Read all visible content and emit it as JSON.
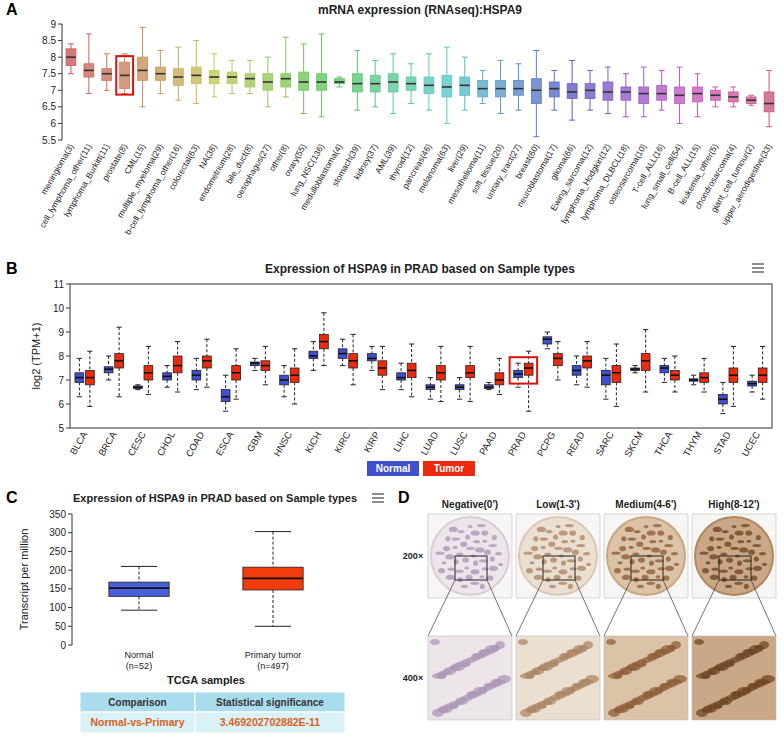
{
  "chart_data": [
    {
      "type": "box",
      "panel": "A",
      "title": "mRNA expression (RNAseq):HSPA9",
      "categories": [
        "meningioma(3)",
        "cell_lymphoma_other(11)",
        "lymphoma_Burkitt(11)",
        "prostate(8)",
        "CML(15)",
        "multiple_myeloma(29)",
        "b-cell_lymphoma_other(16)",
        "colorectal(63)",
        "NA(38)",
        "endometrium(28)",
        "bile_duct(8)",
        "oesophagus(27)",
        "other(8)",
        "ovary(55)",
        "lung_NSC(136)",
        "medulloblastoma(4)",
        "stomach(39)",
        "kidney(37)",
        "AML(39)",
        "thyroid(12)",
        "pancreas(46)",
        "melanoma(63)",
        "liver(29)",
        "mesothelioma(11)",
        "soft_tissue(20)",
        "urinary_tract(27)",
        "breast(60)",
        "neuroblastoma(17)",
        "glioma(66)",
        "Ewing_sarcoma(12)",
        "lymphoma_Hodgkin(12)",
        "lymphoma_DLBCL(18)",
        "osteosarcoma(10)",
        "T-cell_ALL(16)",
        "lung_small_cell(54)",
        "B-cell_ALL(15)",
        "leukemia_other(5)",
        "chondrosarcoma(4)",
        "giant_cell_tumour(2)",
        "upper_aerodigestive(33)"
      ],
      "colors": [
        "#c85a5a",
        "#c86a5a",
        "#c8755a",
        "#c8825a",
        "#c8905a",
        "#c89e5a",
        "#c8ab5a",
        "#c8b85a",
        "#c3c85a",
        "#b3c85a",
        "#a3c85a",
        "#93c85a",
        "#83c85a",
        "#72c85a",
        "#62c85a",
        "#5ac866",
        "#5ac876",
        "#5ac886",
        "#5ac896",
        "#5ac8a6",
        "#5ac8b6",
        "#5ac8c6",
        "#5abac8",
        "#5aaac8",
        "#5a9ac8",
        "#5a8ac8",
        "#5a7ac8",
        "#5a6ac8",
        "#605ac8",
        "#705ac8",
        "#805ac8",
        "#905ac8",
        "#a05ac8",
        "#b05ac8",
        "#c05ac8",
        "#c85abc",
        "#c85aac",
        "#c85a9c",
        "#c85a8c",
        "#c85a7c"
      ],
      "min": [
        7.5,
        6.9,
        7.0,
        6.9,
        6.5,
        6.9,
        6.7,
        6.6,
        6.8,
        6.9,
        6.9,
        6.5,
        6.8,
        6.3,
        6.2,
        7.1,
        6.4,
        6.5,
        6.3,
        6.6,
        6.4,
        6.0,
        6.4,
        6.6,
        6.3,
        6.4,
        5.6,
        6.4,
        6.1,
        6.4,
        6.3,
        6.2,
        6.2,
        6.4,
        6.0,
        6.2,
        6.5,
        6.5,
        6.55,
        5.9
      ],
      "q1": [
        7.75,
        7.4,
        7.3,
        7.05,
        7.3,
        7.3,
        7.15,
        7.2,
        7.2,
        7.2,
        7.1,
        7.0,
        7.1,
        7.0,
        7.0,
        7.2,
        6.95,
        6.95,
        6.95,
        7.0,
        6.9,
        6.8,
        6.85,
        6.8,
        6.8,
        6.85,
        6.6,
        6.8,
        6.75,
        6.75,
        6.7,
        6.7,
        6.6,
        6.7,
        6.6,
        6.65,
        6.7,
        6.65,
        6.6,
        6.35
      ],
      "median": [
        8.0,
        7.6,
        7.5,
        7.45,
        7.6,
        7.5,
        7.4,
        7.45,
        7.4,
        7.4,
        7.35,
        7.25,
        7.35,
        7.25,
        7.25,
        7.25,
        7.2,
        7.2,
        7.25,
        7.2,
        7.15,
        7.1,
        7.15,
        7.05,
        7.05,
        7.05,
        7.0,
        7.05,
        6.95,
        7.0,
        6.95,
        6.95,
        6.9,
        6.9,
        6.85,
        6.9,
        6.85,
        6.8,
        6.7,
        6.6
      ],
      "q3": [
        8.25,
        7.8,
        7.65,
        7.85,
        8.0,
        7.7,
        7.65,
        7.7,
        7.6,
        7.55,
        7.5,
        7.5,
        7.5,
        7.55,
        7.5,
        7.35,
        7.5,
        7.45,
        7.5,
        7.4,
        7.4,
        7.45,
        7.4,
        7.3,
        7.3,
        7.3,
        7.35,
        7.25,
        7.2,
        7.2,
        7.25,
        7.1,
        7.1,
        7.15,
        7.1,
        7.1,
        7.0,
        6.95,
        6.8,
        6.95
      ],
      "max": [
        8.4,
        8.7,
        8.1,
        8.1,
        8.9,
        8.2,
        8.3,
        8.5,
        8.1,
        7.9,
        7.9,
        8.0,
        8.6,
        8.4,
        8.7,
        7.4,
        8.2,
        7.9,
        8.1,
        7.8,
        8.1,
        8.3,
        8.0,
        7.6,
        7.9,
        7.8,
        8.2,
        7.6,
        7.9,
        7.6,
        7.7,
        7.5,
        7.7,
        7.6,
        7.7,
        7.5,
        7.1,
        7.1,
        6.85,
        7.6
      ],
      "ylim": [
        5.5,
        9
      ],
      "yticks": [
        5.5,
        6,
        6.5,
        7,
        7.5,
        8,
        8.5,
        9
      ],
      "highlight": "prostate(8)"
    },
    {
      "type": "box",
      "panel": "B",
      "title": "Expression of HSPA9 in PRAD based on Sample types",
      "y_label": "log2 (TPM+1)",
      "categories": [
        "BLCA",
        "BRCA",
        "CESC",
        "CHOL",
        "COAD",
        "ESCA",
        "GBM",
        "HNSC",
        "KICH",
        "KIRC",
        "KIRP",
        "LIHC",
        "LUAD",
        "LUSC",
        "PAAD",
        "PRAD",
        "PCPG",
        "READ",
        "SARC",
        "SKCM",
        "THCA",
        "THYM",
        "STAD",
        "UCEC"
      ],
      "series": [
        {
          "name": "Normal",
          "color": "#3f4fd0",
          "min": [
            6.3,
            7.0,
            6.6,
            6.7,
            6.6,
            5.7,
            7.4,
            6.3,
            7.4,
            7.6,
            7.4,
            6.6,
            6.2,
            6.2,
            6.6,
            6.7,
            8.3,
            6.8,
            6.2,
            7.3,
            6.9,
            6.8,
            5.6,
            6.5
          ],
          "q1": [
            6.9,
            7.3,
            6.65,
            7.0,
            7.0,
            6.1,
            7.6,
            6.8,
            7.9,
            7.9,
            7.8,
            7.0,
            6.6,
            6.6,
            6.65,
            7.1,
            8.5,
            7.2,
            6.8,
            7.4,
            7.3,
            6.95,
            6.0,
            6.75
          ],
          "median": [
            7.1,
            7.45,
            6.7,
            7.15,
            7.2,
            6.3,
            7.7,
            7.0,
            8.0,
            8.1,
            7.9,
            7.1,
            6.7,
            6.7,
            6.7,
            7.25,
            8.7,
            7.4,
            7.2,
            7.45,
            7.5,
            7.0,
            6.2,
            6.85
          ],
          "q3": [
            7.3,
            7.55,
            6.75,
            7.3,
            7.4,
            6.6,
            7.75,
            7.2,
            8.2,
            8.3,
            8.1,
            7.3,
            6.8,
            6.8,
            6.8,
            7.4,
            8.8,
            7.6,
            7.4,
            7.5,
            7.6,
            7.05,
            6.4,
            6.95
          ],
          "max": [
            7.9,
            8.0,
            6.8,
            7.6,
            7.9,
            7.2,
            7.9,
            7.6,
            8.6,
            8.7,
            8.4,
            7.7,
            7.1,
            7.1,
            6.9,
            7.7,
            9.0,
            8.0,
            7.9,
            7.6,
            7.9,
            7.2,
            6.9,
            7.2
          ]
        },
        {
          "name": "Tumor",
          "color": "#ee2a0e",
          "min": [
            5.9,
            6.3,
            6.4,
            6.5,
            6.7,
            6.2,
            6.8,
            6.0,
            7.6,
            6.8,
            6.6,
            6.3,
            6.1,
            6.1,
            6.4,
            5.7,
            7.0,
            6.7,
            5.9,
            6.5,
            6.5,
            6.5,
            5.9,
            6.2
          ],
          "q1": [
            6.8,
            7.5,
            7.0,
            7.3,
            7.5,
            7.0,
            7.4,
            6.9,
            8.3,
            7.5,
            7.2,
            7.1,
            7.0,
            7.1,
            6.8,
            7.2,
            7.6,
            7.5,
            6.9,
            7.4,
            7.0,
            6.9,
            6.9,
            6.9
          ],
          "median": [
            7.1,
            7.8,
            7.3,
            7.6,
            7.8,
            7.3,
            7.6,
            7.2,
            8.6,
            7.8,
            7.5,
            7.4,
            7.3,
            7.3,
            7.0,
            7.5,
            7.9,
            7.8,
            7.3,
            7.8,
            7.2,
            7.1,
            7.2,
            7.2
          ],
          "q3": [
            7.4,
            8.1,
            7.6,
            8.0,
            8.0,
            7.6,
            7.8,
            7.5,
            8.9,
            8.1,
            7.8,
            7.7,
            7.6,
            7.6,
            7.3,
            7.7,
            8.1,
            8.0,
            7.6,
            8.1,
            7.4,
            7.3,
            7.5,
            7.5
          ],
          "max": [
            8.2,
            9.2,
            8.4,
            8.6,
            8.7,
            8.3,
            8.4,
            8.3,
            9.8,
            8.9,
            8.4,
            8.5,
            8.4,
            8.4,
            7.9,
            8.2,
            8.6,
            8.6,
            8.5,
            9.1,
            8.0,
            7.9,
            8.4,
            8.4
          ]
        }
      ],
      "ylim": [
        5,
        11
      ],
      "yticks": [
        5,
        6,
        7,
        8,
        9,
        10,
        11
      ],
      "legend": "bottom",
      "highlight": "PRAD"
    },
    {
      "type": "box",
      "panel": "C",
      "title": "Expression of HSPA9 in PRAD based on Sample types",
      "x_label": "TCGA samples",
      "y_label": "Transcript per million",
      "categories": [
        "Normal\n(n=52)",
        "Primary tumor\n(n=497)"
      ],
      "colors": [
        "#4a5fd8",
        "#f23c0e"
      ],
      "min": [
        93,
        50
      ],
      "q1": [
        130,
        147
      ],
      "median": [
        152,
        178
      ],
      "q3": [
        168,
        208
      ],
      "max": [
        210,
        303
      ],
      "ylim": [
        0,
        350
      ],
      "yticks": [
        0,
        50,
        100,
        150,
        200,
        250,
        300,
        350
      ]
    }
  ],
  "table": {
    "header": [
      "Comparison",
      "Statistical significance"
    ],
    "rows": [
      [
        "Normal-vs-Primary",
        "3.469202702882E-11"
      ]
    ]
  },
  "images": {
    "panel": "D",
    "columns": [
      "Negative(0')",
      "Low(1-3')",
      "Medium(4-6')",
      "High(8-12')"
    ],
    "rows": [
      "200×",
      "400×"
    ]
  }
}
